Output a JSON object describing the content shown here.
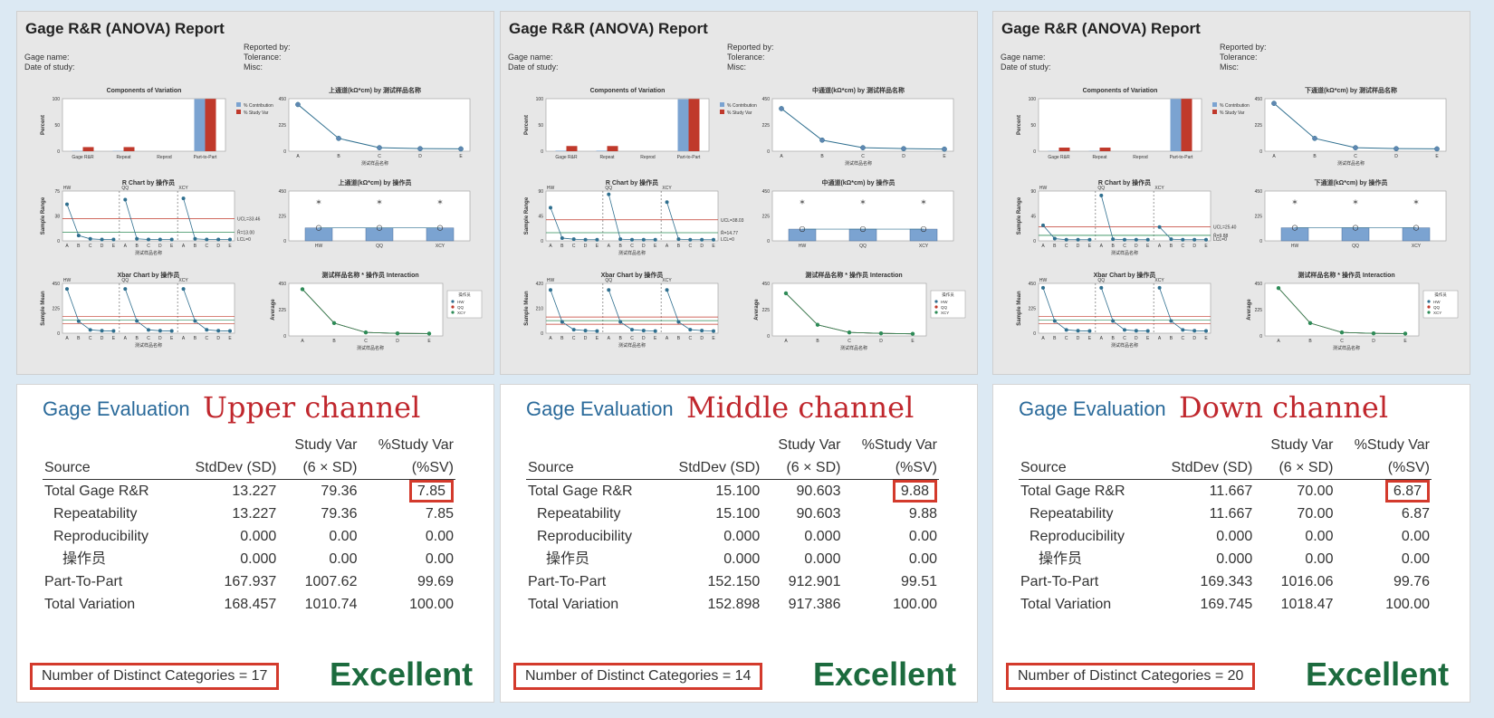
{
  "reports": [
    {
      "title": "Gage R&R (ANOVA) Report",
      "gage_name": "Gage name:",
      "date_of_study": "Date of study:",
      "reported_by": "Reported by:",
      "tolerance": "Tolerance:",
      "misc": "Misc:",
      "panels": {
        "components": "Components of Variation",
        "by_part": "上通道(kΩ*cm) by 测试样品名称",
        "r_chart": "R Chart by 操作员",
        "by_operator": "上通道(kΩ*cm) by 操作员",
        "xbar_chart": "Xbar Chart by 操作员",
        "interaction": "测试样品名称 * 操作员 Interaction"
      },
      "r_limits": {
        "ucl": "UCL=33.46",
        "rbar": "R̄=13.00",
        "lcl": "LCL=0"
      }
    },
    {
      "title": "Gage R&R (ANOVA) Report",
      "gage_name": "Gage name:",
      "date_of_study": "Date of study:",
      "reported_by": "Reported by:",
      "tolerance": "Tolerance:",
      "misc": "Misc:",
      "panels": {
        "components": "Components of Variation",
        "by_part": "中通道(kΩ*cm) by 测试样品名称",
        "r_chart": "R Chart by 操作员",
        "by_operator": "中通道(kΩ*cm) by 操作员",
        "xbar_chart": "Xbar Chart by 操作员",
        "interaction": "测试样品名称 * 操作员 Interaction"
      },
      "r_limits": {
        "ucl": "UCL=38.03",
        "rbar": "R̄=14.77",
        "lcl": "LCL=0"
      }
    },
    {
      "title": "Gage R&R (ANOVA) Report",
      "gage_name": "Gage name:",
      "date_of_study": "Date of study:",
      "reported_by": "Reported by:",
      "tolerance": "Tolerance:",
      "misc": "Misc:",
      "panels": {
        "components": "Components of Variation",
        "by_part": "下通道(kΩ*cm) by 测试样品名称",
        "r_chart": "R Chart by 操作员",
        "by_operator": "下通道(kΩ*cm) by 操作员",
        "xbar_chart": "Xbar Chart by 操作员",
        "interaction": "测试样品名称 * 操作员 Interaction"
      },
      "r_limits": {
        "ucl": "UCL=25.40",
        "rbar": "R̄=9.88",
        "lcl": "LCL=0"
      }
    }
  ],
  "common_labels": {
    "percent": "Percent",
    "sample_range": "Sample Range",
    "sample_mean": "Sample Mean",
    "average": "Average",
    "part_axis": "测试样品名称",
    "legend_contribution": "% Contribution",
    "legend_study_var": "% Study Var",
    "legend_title": "操作员",
    "components_categories": [
      "Gage R&R",
      "Repeat",
      "Reprod",
      "Part-to-Part"
    ],
    "parts": [
      "A",
      "B",
      "C",
      "D",
      "E"
    ],
    "operators": [
      "HW",
      "QQ",
      "XCY"
    ]
  },
  "colors": {
    "contribution": "#7ba3d1",
    "study_var": "#c0392b",
    "line": "#2f6f8f",
    "heading_blue": "#2a6a9a",
    "channel_red": "#c0272d",
    "excellent_green": "#1c6b3e",
    "highlight_box": "#d33a2c"
  },
  "evaluation_header": {
    "heading": "Gage Evaluation",
    "col_source": "Source",
    "col_sd": "StdDev (SD)",
    "col_sv_1": "Study Var",
    "col_sv_2": "(6 × SD)",
    "col_psv_1": "%Study Var",
    "col_psv_2": "(%SV)",
    "verdict": "Excellent"
  },
  "chart_data": [
    {
      "type": "table",
      "title": "Upper channel",
      "rows": [
        {
          "source": "Total Gage R&R",
          "sd": "13.227",
          "sv": "79.36",
          "psv": "7.85"
        },
        {
          "source": "Repeatability",
          "sd": "13.227",
          "sv": "79.36",
          "psv": "7.85"
        },
        {
          "source": "Reproducibility",
          "sd": "0.000",
          "sv": "0.00",
          "psv": "0.00"
        },
        {
          "source": "操作员",
          "sd": "0.000",
          "sv": "0.00",
          "psv": "0.00"
        },
        {
          "source": "Part-To-Part",
          "sd": "167.937",
          "sv": "1007.62",
          "psv": "99.69"
        },
        {
          "source": "Total Variation",
          "sd": "168.457",
          "sv": "1010.74",
          "psv": "100.00"
        }
      ],
      "ndc": "Number of Distinct Categories = 17",
      "components": {
        "contribution": [
          0.6,
          0.6,
          0.0,
          99.4
        ],
        "study_var": [
          7.85,
          7.85,
          0.0,
          99.69
        ]
      },
      "part_means": [
        400,
        110,
        30,
        22,
        20
      ],
      "r_values": [
        55,
        8,
        3,
        2,
        2,
        62,
        3,
        2,
        2,
        2,
        64,
        3,
        2,
        2,
        2
      ],
      "r_ylim": [
        0,
        75
      ],
      "r_limits_values": {
        "ucl": 33.46,
        "rbar": 13.0,
        "lcl": 0
      },
      "xbar_values": [
        400,
        108,
        30,
        22,
        20,
        400,
        110,
        30,
        22,
        20,
        400,
        110,
        31,
        22,
        20
      ],
      "xbar_ylim": [
        0,
        450
      ],
      "operator_means": [
        117,
        117,
        117
      ]
    },
    {
      "type": "table",
      "title": "Middle channel",
      "rows": [
        {
          "source": "Total Gage R&R",
          "sd": "15.100",
          "sv": "90.603",
          "psv": "9.88"
        },
        {
          "source": "Repeatability",
          "sd": "15.100",
          "sv": "90.603",
          "psv": "9.88"
        },
        {
          "source": "Reproducibility",
          "sd": "0.000",
          "sv": "0.000",
          "psv": "0.00"
        },
        {
          "source": "操作员",
          "sd": "0.000",
          "sv": "0.000",
          "psv": "0.00"
        },
        {
          "source": "Part-To-Part",
          "sd": "152.150",
          "sv": "912.901",
          "psv": "99.51"
        },
        {
          "source": "Total Variation",
          "sd": "152.898",
          "sv": "917.386",
          "psv": "100.00"
        }
      ],
      "ndc": "Number of Distinct Categories = 14",
      "components": {
        "contribution": [
          1.0,
          1.0,
          0.0,
          99.0
        ],
        "study_var": [
          9.88,
          9.88,
          0.0,
          99.51
        ]
      },
      "part_means": [
        365,
        95,
        30,
        22,
        18
      ],
      "r_values": [
        60,
        5,
        3,
        2,
        2,
        84,
        3,
        2,
        2,
        2,
        70,
        3,
        2,
        2,
        2
      ],
      "r_ylim": [
        0,
        90
      ],
      "r_limits_values": {
        "ucl": 38.03,
        "rbar": 14.77,
        "lcl": 0
      },
      "xbar_values": [
        365,
        95,
        30,
        22,
        18,
        365,
        95,
        30,
        22,
        18,
        365,
        95,
        30,
        22,
        18
      ],
      "xbar_ylim": [
        0,
        420
      ],
      "operator_means": [
        106,
        106,
        106
      ]
    },
    {
      "type": "table",
      "title": "Down channel",
      "rows": [
        {
          "source": "Total Gage R&R",
          "sd": "11.667",
          "sv": "70.00",
          "psv": "6.87"
        },
        {
          "source": "Repeatability",
          "sd": "11.667",
          "sv": "70.00",
          "psv": "6.87"
        },
        {
          "source": "Reproducibility",
          "sd": "0.000",
          "sv": "0.00",
          "psv": "0.00"
        },
        {
          "source": "操作员",
          "sd": "0.000",
          "sv": "0.00",
          "psv": "0.00"
        },
        {
          "source": "Part-To-Part",
          "sd": "169.343",
          "sv": "1016.06",
          "psv": "99.76"
        },
        {
          "source": "Total Variation",
          "sd": "169.745",
          "sv": "1018.47",
          "psv": "100.00"
        }
      ],
      "ndc": "Number of Distinct Categories = 20",
      "components": {
        "contribution": [
          0.5,
          0.5,
          0.0,
          99.5
        ],
        "study_var": [
          6.87,
          6.87,
          0.0,
          99.76
        ]
      },
      "part_means": [
        410,
        110,
        30,
        22,
        20
      ],
      "r_values": [
        28,
        4,
        2,
        2,
        2,
        82,
        3,
        2,
        2,
        2,
        25,
        3,
        2,
        2,
        2
      ],
      "r_ylim": [
        0,
        90
      ],
      "r_limits_values": {
        "ucl": 25.4,
        "rbar": 9.88,
        "lcl": 0
      },
      "xbar_values": [
        410,
        110,
        30,
        22,
        20,
        410,
        110,
        30,
        22,
        20,
        410,
        110,
        30,
        22,
        20
      ],
      "xbar_ylim": [
        0,
        450
      ],
      "operator_means": [
        118,
        118,
        118
      ]
    }
  ]
}
